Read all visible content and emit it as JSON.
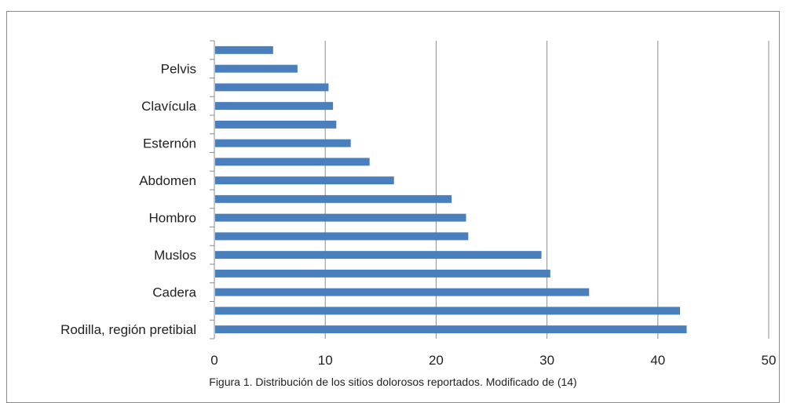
{
  "chart_data": {
    "type": "bar",
    "orientation": "horizontal",
    "categories": [
      "Rodilla, región pretibial",
      "",
      "Cadera",
      "",
      "Muslos",
      "",
      "Hombro",
      "",
      "Abdomen",
      "",
      "Esternón",
      "",
      "Clavícula",
      "",
      "Pelvis",
      ""
    ],
    "values": [
      42.6,
      42.0,
      33.8,
      30.3,
      29.5,
      22.9,
      22.7,
      21.4,
      16.2,
      14.0,
      12.3,
      11.0,
      10.7,
      10.3,
      7.5,
      5.3
    ],
    "xlim": [
      0,
      50
    ],
    "xticks": [
      0,
      10,
      20,
      30,
      40,
      50
    ],
    "grid": true,
    "bar_color": "#4a7fbd",
    "grid_color": "#8c8c8c"
  },
  "caption": "Figura 1. Distribución de los sitios dolorosos reportados. Modificado de (14)"
}
